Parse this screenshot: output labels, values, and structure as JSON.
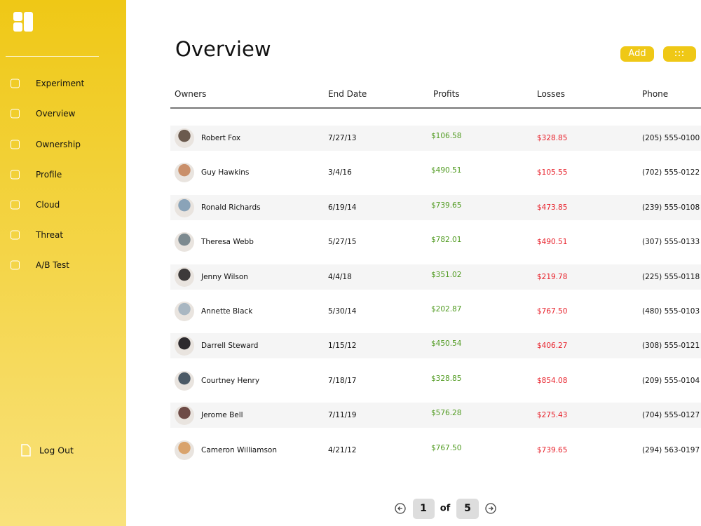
{
  "sidebar": {
    "nav": [
      "Experiment",
      "Overview",
      "Ownership",
      "Profile",
      "Cloud",
      "Threat",
      "A/B Test"
    ],
    "logout": "Log Out"
  },
  "header": {
    "title": "Overview",
    "add_button": "Add"
  },
  "table": {
    "columns": [
      "Owners",
      "End Date",
      "Profits",
      "Losses",
      "Phone"
    ],
    "rows": [
      [
        "Robert Fox",
        "7/27/13",
        "$106.58",
        "$328.85",
        "(205) 555-0100"
      ],
      [
        "Guy Hawkins",
        "3/4/16",
        "$490.51",
        "$105.55",
        "(702) 555-0122"
      ],
      [
        "Ronald Richards",
        "6/19/14",
        "$739.65",
        "$473.85",
        "(239) 555-0108"
      ],
      [
        "Theresa Webb",
        "5/27/15",
        "$782.01",
        "$490.51",
        "(307) 555-0133"
      ],
      [
        "Jenny Wilson",
        "4/4/18",
        "$351.02",
        "$219.78",
        "(225) 555-0118"
      ],
      [
        "Annette Black",
        "5/30/14",
        "$202.87",
        "$767.50",
        "(480) 555-0103"
      ],
      [
        "Darrell Steward",
        "1/15/12",
        "$450.54",
        "$406.27",
        "(308) 555-0121"
      ],
      [
        "Courtney Henry",
        "7/18/17",
        "$328.85",
        "$854.08",
        "(209) 555-0104"
      ],
      [
        "Jerome Bell",
        "7/11/19",
        "$576.28",
        "$275.43",
        "(704) 555-0127"
      ],
      [
        "Cameron Williamson",
        "4/21/12",
        "$767.50",
        "$739.65",
        "(294) 563-0197"
      ]
    ]
  },
  "pagination": {
    "current": "1",
    "of": "of",
    "total": "5"
  }
}
